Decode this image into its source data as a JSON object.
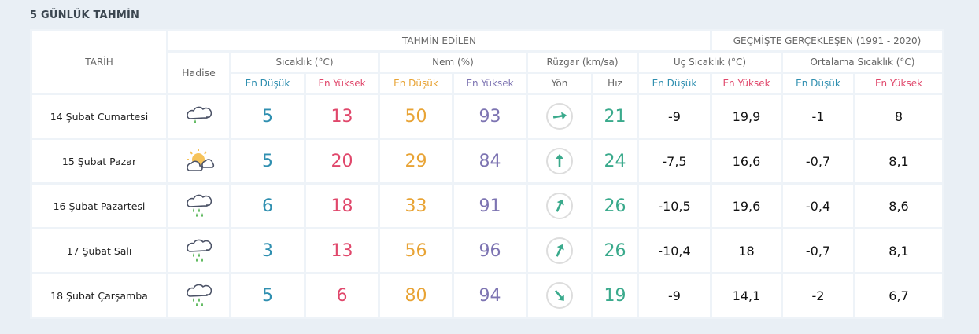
{
  "title": "5 GÜNLÜK TAHMİN",
  "headers": {
    "date": "TARİH",
    "forecast": "TAHMİN EDİLEN",
    "past": "GEÇMİŞTE GERÇEKLEŞEN (1991 - 2020)",
    "event": "Hadise",
    "temp": "Sıcaklık (°C)",
    "humidity": "Nem (%)",
    "wind": "Rüzgar (km/sa)",
    "extreme": "Uç Sıcaklık (°C)",
    "average": "Ortalama Sıcaklık (°C)",
    "min": "En Düşük",
    "max": "En Yüksek",
    "direction": "Yön",
    "speed": "Hız"
  },
  "colors": {
    "min": "#2f8fb0",
    "max": "#e0476b",
    "humidity_min": "#e8a334",
    "humidity_max": "#7d74b2",
    "wind": "#3aaa8c"
  },
  "rows": [
    {
      "date": "14 Şubat Cumartesi",
      "icon": "cloud-light-rain-icon",
      "temp_min": "5",
      "temp_max": "13",
      "hum_min": "50",
      "hum_max": "93",
      "wind_dir_deg": 80,
      "wind_speed": "21",
      "ext_min": "-9",
      "ext_max": "19,9",
      "avg_min": "-1",
      "avg_max": "8"
    },
    {
      "date": "15 Şubat Pazar",
      "icon": "sun-cloud-icon",
      "temp_min": "5",
      "temp_max": "20",
      "hum_min": "29",
      "hum_max": "84",
      "wind_dir_deg": 0,
      "wind_speed": "24",
      "ext_min": "-7,5",
      "ext_max": "16,6",
      "avg_min": "-0,7",
      "avg_max": "8,1"
    },
    {
      "date": "16 Şubat Pazartesi",
      "icon": "cloud-rain-icon",
      "temp_min": "6",
      "temp_max": "18",
      "hum_min": "33",
      "hum_max": "91",
      "wind_dir_deg": 25,
      "wind_speed": "26",
      "ext_min": "-10,5",
      "ext_max": "19,6",
      "avg_min": "-0,4",
      "avg_max": "8,6"
    },
    {
      "date": "17 Şubat Salı",
      "icon": "cloud-rain-icon",
      "temp_min": "3",
      "temp_max": "13",
      "hum_min": "56",
      "hum_max": "96",
      "wind_dir_deg": 25,
      "wind_speed": "26",
      "ext_min": "-10,4",
      "ext_max": "18",
      "avg_min": "-0,7",
      "avg_max": "8,1"
    },
    {
      "date": "18 Şubat Çarşamba",
      "icon": "cloud-rain-icon",
      "temp_min": "5",
      "temp_max": "6",
      "hum_min": "80",
      "hum_max": "94",
      "wind_dir_deg": 140,
      "wind_speed": "19",
      "ext_min": "-9",
      "ext_max": "14,1",
      "avg_min": "-2",
      "avg_max": "6,7"
    }
  ]
}
